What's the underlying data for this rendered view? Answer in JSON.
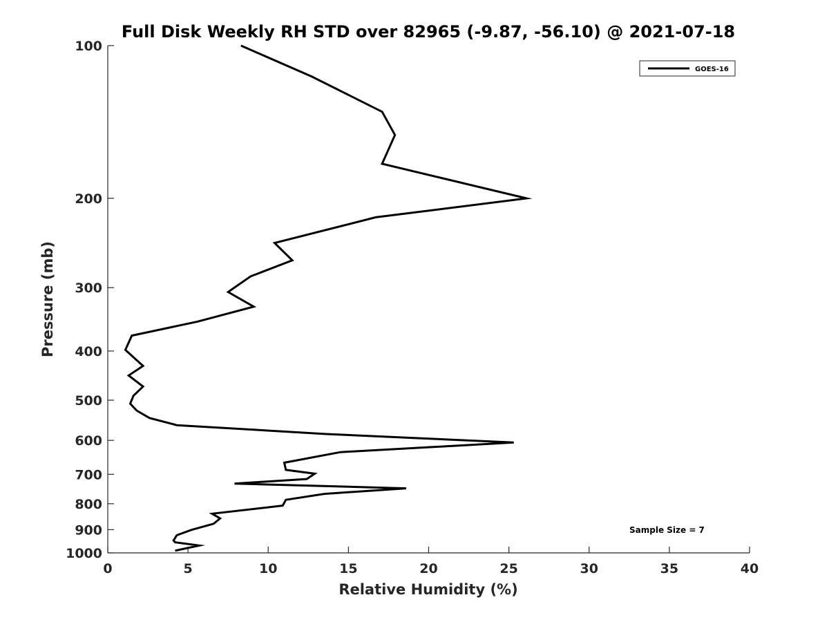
{
  "chart_data": {
    "type": "line",
    "title": "Full Disk Weekly RH STD over 82965 (-9.87, -56.10) @ 2021-07-18",
    "xlabel": "Relative Humidity (%)",
    "ylabel": "Pressure (mb)",
    "xlim": [
      0,
      40
    ],
    "ylim": [
      100,
      1000
    ],
    "y_scale": "log",
    "y_reversed": true,
    "x_ticks": [
      0,
      5,
      10,
      15,
      20,
      25,
      30,
      35,
      40
    ],
    "x_tick_labels": [
      "0",
      "5",
      "10",
      "15",
      "20",
      "25",
      "30",
      "35",
      "40"
    ],
    "y_ticks": [
      100,
      200,
      300,
      400,
      500,
      600,
      700,
      800,
      900,
      1000
    ],
    "y_tick_labels": [
      "100",
      "200",
      "300",
      "400",
      "500",
      "600",
      "700",
      "800",
      "900",
      "1000"
    ],
    "grid": false,
    "legend": {
      "position": "top-right",
      "entries": [
        "GOES-16"
      ]
    },
    "annotation": "Sample Size = 7",
    "series": [
      {
        "name": "GOES-16",
        "color": "#000000",
        "x": [
          8.3,
          12.7,
          17.1,
          17.9,
          17.1,
          26.1,
          16.7,
          10.4,
          11.5,
          8.9,
          7.5,
          9.1,
          5.6,
          1.5,
          1.1,
          2.2,
          1.3,
          2.2,
          1.6,
          1.4,
          1.8,
          2.6,
          4.3,
          13.6,
          25.3,
          14.5,
          11.0,
          11.1,
          12.9,
          12.4,
          7.9,
          18.6,
          13.5,
          11.1,
          10.9,
          6.5,
          7.0,
          6.6,
          5.2,
          4.3,
          4.1,
          4.2,
          5.7,
          4.2
        ],
        "y": [
          100,
          115,
          135,
          150,
          171,
          200,
          218,
          245,
          265,
          285,
          306,
          327,
          350,
          373,
          398,
          428,
          447,
          470,
          490,
          508,
          524,
          542,
          560,
          583,
          606,
          633,
          664,
          686,
          698,
          715,
          730,
          746,
          765,
          786,
          807,
          837,
          855,
          876,
          901,
          923,
          945,
          953,
          967,
          990
        ]
      }
    ]
  }
}
